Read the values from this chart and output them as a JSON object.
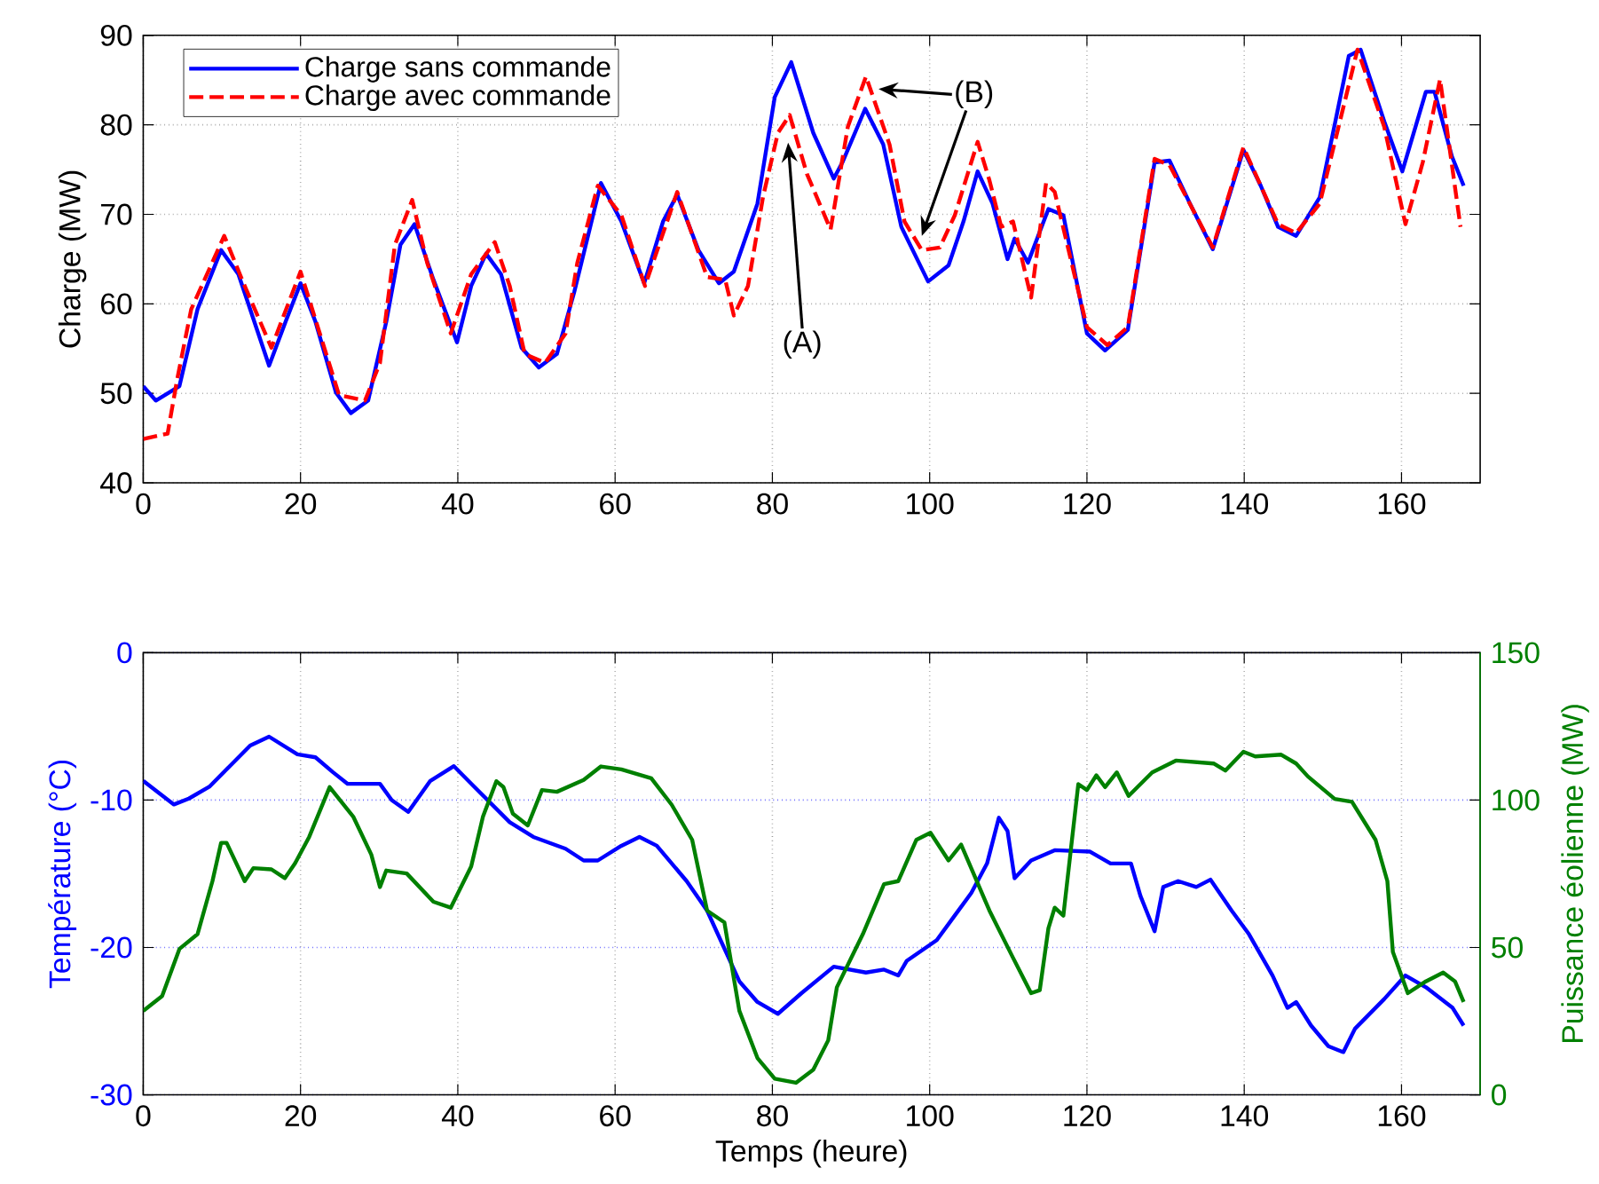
{
  "chart_data": [
    {
      "type": "line",
      "ylabel": "Charge (MW)",
      "xlim": [
        0,
        170
      ],
      "xticks": [
        0,
        20,
        40,
        60,
        80,
        100,
        120,
        140,
        160
      ],
      "ylim": [
        40,
        90
      ],
      "yticks": [
        40,
        50,
        60,
        70,
        80,
        90
      ],
      "grid": true,
      "legend": "top left",
      "series": [
        {
          "name": "Charge sans commande",
          "color": "#0000ff",
          "line_style": "solid",
          "x": [
            0,
            1.6,
            4.6,
            6.9,
            9.9,
            12.1,
            16.0,
            18.1,
            20.0,
            21.9,
            24.5,
            26.4,
            28.6,
            30.9,
            32.7,
            34.5,
            36.9,
            39.9,
            41.7,
            43.6,
            45.5,
            48.1,
            50.3,
            52.6,
            54.8,
            58.2,
            60.8,
            63.7,
            66.1,
            67.9,
            70.6,
            73.2,
            75.1,
            78.1,
            80.3,
            82.4,
            85.2,
            87.8,
            88.9,
            91.8,
            94.1,
            96.4,
            99.8,
            102.4,
            104.3,
            106.1,
            108.0,
            109.9,
            110.8,
            112.5,
            115.1,
            117.0,
            120.0,
            122.3,
            125.2,
            128.6,
            130.5,
            133.1,
            136.0,
            139.9,
            142.1,
            144.3,
            146.6,
            149.6,
            153.3,
            154.8,
            157.8,
            160.1,
            163.1,
            164.2,
            166.4,
            167.9
          ],
          "values": [
            50.8,
            49.2,
            50.8,
            59.4,
            66.0,
            63.3,
            53.1,
            58.0,
            62.3,
            58.0,
            50.1,
            47.8,
            49.2,
            58.0,
            66.6,
            68.9,
            62.7,
            55.7,
            62.0,
            65.6,
            63.3,
            55.1,
            52.9,
            54.4,
            61.3,
            73.5,
            69.2,
            62.3,
            69.2,
            72.2,
            66.0,
            62.3,
            63.6,
            71.2,
            83.1,
            87.0,
            79.1,
            74.0,
            75.8,
            81.8,
            77.8,
            68.6,
            62.5,
            64.3,
            69.2,
            74.8,
            71.2,
            65.0,
            67.3,
            64.6,
            70.6,
            69.9,
            56.7,
            54.8,
            57.1,
            75.8,
            76.0,
            71.2,
            66.1,
            77.2,
            73.2,
            68.6,
            67.6,
            71.9,
            87.7,
            88.4,
            80.4,
            74.8,
            83.7,
            83.7,
            76.5,
            73.2
          ]
        },
        {
          "name": "Charge avec commande",
          "color": "#ff0000",
          "line_style": "dashed",
          "x": [
            0,
            3.1,
            4.3,
            6.1,
            10.3,
            12.9,
            16.3,
            20.0,
            22.2,
            24.9,
            28.2,
            30.1,
            32.0,
            34.2,
            36.1,
            39.1,
            41.7,
            44.7,
            46.6,
            48.5,
            51.1,
            53.7,
            55.2,
            57.8,
            60.8,
            63.8,
            67.9,
            71.7,
            74.0,
            75.1,
            76.9,
            78.8,
            80.7,
            82.2,
            84.4,
            87.4,
            89.6,
            91.9,
            94.9,
            96.8,
            99.0,
            101.3,
            103.2,
            106.1,
            107.6,
            109.1,
            110.6,
            112.9,
            114.8,
            115.9,
            120.0,
            122.6,
            125.2,
            128.6,
            130.5,
            136.0,
            139.9,
            144.3,
            146.6,
            149.6,
            154.4,
            157.8,
            160.5,
            162.7,
            164.9,
            167.5
          ],
          "values": [
            44.9,
            45.5,
            51.5,
            59.4,
            67.6,
            62.0,
            55.1,
            63.6,
            57.4,
            49.8,
            49.2,
            53.4,
            66.6,
            71.6,
            64.6,
            56.7,
            63.3,
            66.9,
            62.0,
            54.4,
            53.4,
            56.7,
            64.6,
            73.2,
            69.9,
            62.0,
            72.5,
            63.0,
            62.7,
            58.7,
            62.0,
            71.9,
            79.1,
            81.1,
            74.5,
            68.3,
            79.8,
            85.4,
            77.8,
            69.2,
            66.0,
            66.3,
            69.9,
            78.1,
            73.8,
            68.6,
            69.2,
            60.7,
            73.5,
            72.5,
            57.4,
            55.4,
            57.4,
            76.2,
            75.5,
            66.3,
            77.5,
            68.9,
            67.9,
            71.2,
            88.4,
            79.8,
            68.9,
            75.8,
            85.1,
            68.6
          ]
        }
      ],
      "annotations": [
        {
          "text": "(A)",
          "x": 82,
          "y": 78
        },
        {
          "text": "(B)",
          "x": 93.5,
          "y": 84
        }
      ]
    },
    {
      "type": "line",
      "xlabel": "Temps (heure)",
      "ylabel": "Température (°C)",
      "y2label": "Puissance éolienne (MW)",
      "xlim": [
        0,
        170
      ],
      "xticks": [
        0,
        20,
        40,
        60,
        80,
        100,
        120,
        140,
        160
      ],
      "ylim": [
        -30,
        0
      ],
      "yticks": [
        -30,
        -20,
        -10,
        0
      ],
      "y2lim": [
        0,
        150
      ],
      "y2ticks": [
        0,
        50,
        100,
        150
      ],
      "grid": true,
      "series": [
        {
          "color": "#0000ff",
          "x": [
            0,
            3.9,
            5.8,
            8.4,
            11.0,
            13.6,
            16.0,
            19.6,
            21.9,
            24.1,
            26.0,
            30.1,
            31.6,
            33.7,
            36.5,
            39.5,
            42.1,
            46.6,
            49.6,
            53.7,
            56.0,
            57.8,
            60.8,
            63.1,
            65.3,
            69.1,
            71.7,
            75.8,
            78.1,
            80.7,
            83.7,
            87.8,
            91.9,
            94.2,
            96.0,
            97.1,
            100.9,
            103.1,
            105.3,
            107.3,
            108.8,
            109.9,
            110.8,
            112.9,
            115.9,
            120.4,
            123.0,
            125.6,
            126.8,
            128.6,
            129.7,
            131.6,
            133.9,
            135.7,
            138.4,
            140.6,
            143.6,
            145.5,
            146.6,
            148.5,
            150.7,
            152.6,
            154.1,
            157.8,
            160.5,
            163.1,
            166.5,
            167.9
          ],
          "values": [
            -8.7,
            -10.3,
            -9.9,
            -9.1,
            -7.7,
            -6.3,
            -5.7,
            -6.9,
            -7.1,
            -8.1,
            -8.9,
            -8.9,
            -10.0,
            -10.8,
            -8.7,
            -7.7,
            -9.1,
            -11.5,
            -12.5,
            -13.3,
            -14.1,
            -14.1,
            -13.1,
            -12.5,
            -13.1,
            -15.5,
            -17.5,
            -22.3,
            -23.7,
            -24.5,
            -23.1,
            -21.3,
            -21.7,
            -21.5,
            -21.9,
            -20.9,
            -19.5,
            -17.9,
            -16.3,
            -14.3,
            -11.2,
            -12.1,
            -15.3,
            -14.1,
            -13.4,
            -13.5,
            -14.3,
            -14.3,
            -16.5,
            -18.9,
            -15.9,
            -15.5,
            -15.9,
            -15.4,
            -17.5,
            -19.1,
            -21.9,
            -24.1,
            -23.7,
            -25.3,
            -26.7,
            -27.1,
            -25.5,
            -23.5,
            -21.9,
            -22.7,
            -24.1,
            -25.3
          ]
        },
        {
          "color": "#008000",
          "axis": "y2",
          "x": [
            0,
            2.4,
            4.6,
            6.9,
            8.8,
            9.9,
            10.6,
            12.9,
            14.0,
            16.3,
            18.0,
            19.3,
            21.1,
            23.7,
            26.7,
            29.0,
            30.1,
            30.9,
            33.5,
            36.9,
            39.1,
            41.7,
            43.2,
            44.9,
            45.8,
            47.0,
            48.9,
            50.7,
            52.6,
            56.0,
            58.2,
            60.8,
            64.6,
            67.2,
            69.8,
            71.7,
            73.9,
            75.8,
            78.1,
            80.3,
            83.0,
            85.2,
            87.1,
            88.2,
            91.5,
            94.2,
            96.0,
            98.3,
            100.1,
            102.4,
            104.0,
            107.6,
            110.6,
            112.9,
            114.0,
            115.1,
            115.9,
            117.0,
            118.9,
            120.0,
            121.2,
            122.3,
            123.8,
            125.3,
            128.3,
            131.3,
            136.1,
            137.6,
            139.9,
            141.4,
            144.7,
            146.6,
            148.1,
            151.5,
            153.7,
            156.7,
            158.2,
            158.9,
            160.8,
            163.1,
            165.3,
            166.8,
            167.9
          ],
          "values": [
            28.5,
            33.5,
            49.5,
            54.5,
            72.5,
            85.5,
            85.5,
            72.5,
            76.9,
            76.5,
            73.5,
            78.5,
            87.5,
            104.4,
            94.4,
            81.5,
            70.5,
            76.1,
            75.1,
            65.5,
            63.5,
            77.5,
            94.4,
            106.4,
            104.4,
            95.4,
            91.4,
            103.4,
            102.8,
            106.8,
            111.4,
            110.4,
            107.4,
            98.4,
            86.5,
            62.5,
            58.5,
            28.5,
            12.5,
            5.5,
            4.1,
            8.5,
            18.5,
            36.5,
            54.5,
            71.5,
            72.5,
            86.5,
            88.9,
            79.5,
            84.9,
            62.5,
            46.5,
            34.5,
            35.5,
            56.5,
            63.5,
            60.8,
            105.4,
            103.4,
            108.4,
            104.4,
            109.4,
            101.4,
            109.4,
            113.4,
            112.4,
            110.0,
            116.4,
            114.8,
            115.4,
            112.4,
            108.0,
            100.4,
            99.4,
            86.5,
            72.5,
            48.5,
            34.5,
            38.5,
            41.5,
            38.5,
            31.5
          ]
        }
      ]
    }
  ]
}
